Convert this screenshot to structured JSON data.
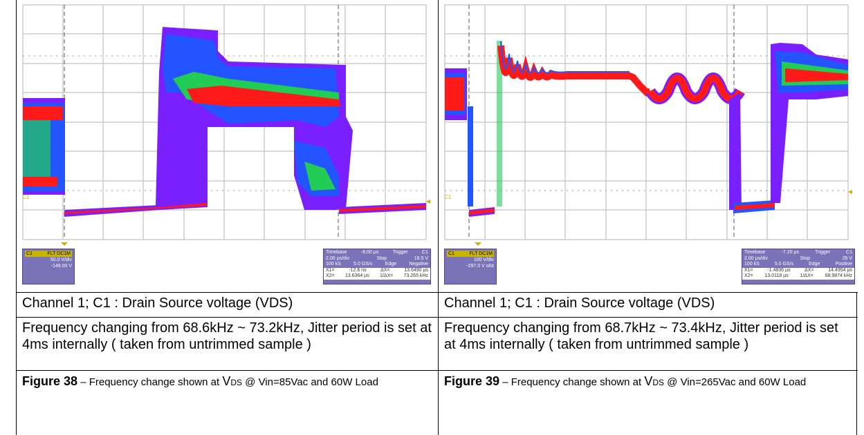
{
  "figures": [
    {
      "scope": {
        "channel": "C1",
        "filters": "FLT DC1M",
        "volts_per_div": "50.0 V/div",
        "offset": "-149.00 V",
        "timebase_label": "Timebase",
        "timebase_value": "-8.00 µs",
        "trigger_label": "Trigger",
        "trigger_channel": "C1",
        "time_per_div": "2.00 µs/div",
        "trigger_mode": "Stop",
        "trigger_level": "16.5 V",
        "samples": "100 kS",
        "sample_rate": "5.0 GS/s",
        "trigger_type": "Edge",
        "trigger_slope": "Negative",
        "x1_label": "X1=",
        "x1_value": "-12.6 ns",
        "dx_label": "ΔX=",
        "dx_value": "13.6490 µs",
        "x2_label": "X2=",
        "x2_value": "13.6364 µs",
        "inv_dx_label": "1/ΔX=",
        "inv_dx_value": "73.265 kHz"
      },
      "channel_caption": "Channel 1; C1 : Drain Source voltage (VDS)",
      "description": "Frequency changing from 68.6kHz ~ 73.2kHz, Jitter period is set at 4ms internally ( taken from untrimmed sample )",
      "figure_label": "Figure 38",
      "figure_dash": " – Frequency change shown at ",
      "figure_v": "V",
      "figure_sub": "DS",
      "figure_rest": " @ Vin=85Vac and 60W Load"
    },
    {
      "scope": {
        "channel": "C1",
        "filters": "FLT DC1M",
        "volts_per_div": "100 V/div",
        "offset": "-297.0 V ofst",
        "timebase_label": "Timebase",
        "timebase_value": "-7.20 µs",
        "trigger_label": "Trigger",
        "trigger_channel": "C1",
        "time_per_div": "2.00 µs/div",
        "trigger_mode": "Stop",
        "trigger_level": "26 V",
        "samples": "100 kS",
        "sample_rate": "5.0 GS/s",
        "trigger_type": "Edge",
        "trigger_slope": "Positive",
        "x1_label": "X1=",
        "x1_value": "-1.4836 µs",
        "dx_label": "ΔX=",
        "dx_value": "14.4954 µs",
        "x2_label": "X2=",
        "x2_value": "13.0118 µs",
        "inv_dx_label": "1/ΔX=",
        "inv_dx_value": "68.9874 kHz"
      },
      "channel_caption": "Channel 1; C1 : Drain Source voltage (VDS)",
      "description": "Frequency changing from 68.7kHz ~ 73.4kHz, Jitter period is set at 4ms internally ( taken from untrimmed sample )",
      "figure_label": "Figure 39",
      "figure_dash": " – Frequency change shown at ",
      "figure_v": "V",
      "figure_sub": "DS",
      "figure_rest": " @ Vin=265Vac and 60W Load"
    }
  ],
  "colors": {
    "grid": "#b4b4b4",
    "trace_core": "#ff1a1a",
    "trace_mid": "#22cc55",
    "trace_outer": "#2255ff",
    "trace_edge": "#7a20ff",
    "info_panel": "#7a73b8",
    "channel_tag": "#c8b400"
  }
}
